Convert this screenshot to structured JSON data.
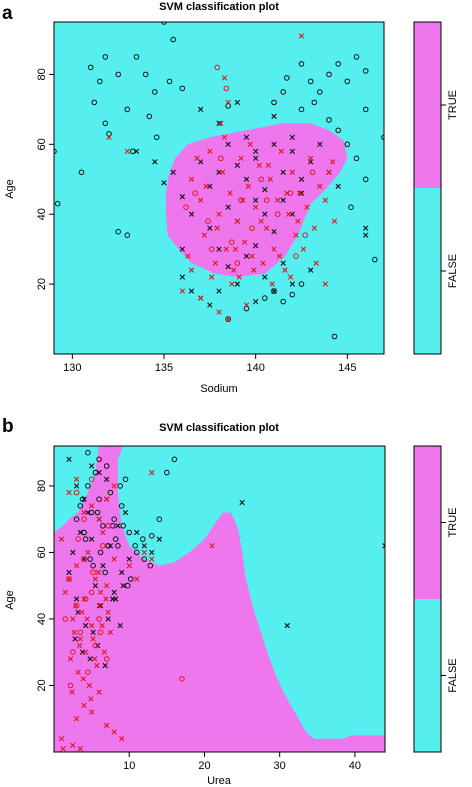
{
  "colors": {
    "false_region": "#55efef",
    "true_region": "#ee77ee",
    "marker_black": "#111111",
    "marker_red": "#e01818",
    "frame": "#000000"
  },
  "panels": [
    {
      "letter": "a",
      "chart_data": {
        "type": "scatter",
        "title": "SVM classification plot",
        "xlabel": "Sodium",
        "ylabel": "Age",
        "xlim": [
          129,
          147
        ],
        "ylim": [
          0,
          95
        ],
        "xticks": [
          130,
          135,
          140,
          145
        ],
        "yticks": [
          20,
          40,
          60,
          80
        ],
        "classes": [
          "FALSE",
          "TRUE"
        ],
        "true_region_polygon": [
          [
            135.6,
            56
          ],
          [
            136.3,
            60
          ],
          [
            137.5,
            62
          ],
          [
            139.5,
            64
          ],
          [
            141.5,
            66
          ],
          [
            143,
            66
          ],
          [
            144,
            64
          ],
          [
            144.8,
            61
          ],
          [
            145,
            56
          ],
          [
            144.6,
            52
          ],
          [
            143.8,
            47
          ],
          [
            143,
            43
          ],
          [
            142.3,
            34
          ],
          [
            141.6,
            28
          ],
          [
            140.5,
            23
          ],
          [
            139,
            22
          ],
          [
            137.8,
            23
          ],
          [
            136.5,
            26
          ],
          [
            135.8,
            30
          ],
          [
            135.2,
            34
          ],
          [
            135.1,
            40
          ],
          [
            135.1,
            46
          ],
          [
            135.3,
            52
          ]
        ],
        "series": [
          {
            "marker": "o",
            "color": "black",
            "x": [
              129,
              129.2,
              130.5,
              131,
              131.2,
              131.5,
              131.8,
              132,
              132.5,
              133,
              133.3,
              133.5,
              134,
              134.2,
              134.5,
              135,
              135.5,
              133,
              134.6,
              135.3,
              136,
              132.5,
              131.8,
              138.5,
              141,
              141.5,
              141.7,
              143,
              143.5,
              144,
              144.5,
              145,
              145.5,
              146,
              146,
              142.5,
              142.5,
              143.2,
              144,
              144.5,
              145,
              145.5,
              146,
              145.2,
              146.5,
              147,
              144.3,
              138.5,
              139.5,
              141.5,
              142,
              142.5,
              140.5,
              141
            ],
            "y": [
              58,
              43,
              52,
              82,
              72,
              78,
              85,
              63,
              35,
              70,
              58,
              85,
              80,
              68,
              75,
              95,
              90,
              34,
              62,
              78,
              76,
              80,
              66,
              71,
              72,
              75,
              79,
              78,
              75,
              80,
              83,
              78,
              85,
              81,
              70,
              83,
              70,
              72,
              67,
              64,
              60,
              56,
              50,
              42,
              27,
              62,
              5,
              10,
              13,
              15,
              17,
              20,
              16,
              18
            ]
          },
          {
            "marker": "x",
            "color": "black",
            "x": [
              133.5,
              134.5,
              135,
              135.5,
              136,
              136,
              136.5,
              136.5,
              137,
              137,
              137.5,
              137.5,
              138,
              138,
              138,
              138.5,
              138.5,
              139,
              139,
              139,
              139.5,
              139.5,
              140,
              140,
              140,
              140,
              140.5,
              140.5,
              141,
              141,
              141,
              141.5,
              141.5,
              142,
              142,
              142,
              142.5,
              143,
              143,
              143.5,
              144,
              144.5,
              146,
              146,
              137,
              138,
              139,
              139.5,
              140,
              141,
              142,
              137.5,
              140.5,
              141.5,
              136,
              138.5,
              142.5
            ],
            "y": [
              58,
              55,
              49,
              52,
              45,
              22,
              40,
              18,
              55,
              16,
              48,
              14,
              52,
              30,
              18,
              60,
              25,
              54,
              38,
              20,
              50,
              28,
              58,
              44,
              31,
              15,
              47,
              22,
              60,
              35,
              18,
              52,
              26,
              58,
              40,
              20,
              50,
              55,
              24,
              60,
              52,
              48,
              36,
              34,
              70,
              66,
              72,
              62,
              56,
              68,
              62,
              36,
              40,
              44,
              30,
              42,
              46
            ]
          },
          {
            "marker": "x",
            "color": "red",
            "x": [
              142.5,
              132,
              133,
              136.3,
              136.5,
              137,
              137.2,
              137.5,
              137.8,
              138,
              138.2,
              138.4,
              138.6,
              138.8,
              139,
              139.2,
              139.4,
              139.6,
              139.8,
              140,
              140.2,
              140.4,
              140.6,
              140.8,
              141,
              141.2,
              141.4,
              141.6,
              141.8,
              142,
              142.2,
              142.4,
              142.6,
              142.8,
              143,
              143.2,
              143.5,
              143.8,
              144,
              144.3,
              136.8,
              137.3,
              137.9,
              138.3,
              138.9,
              139.3,
              139.7,
              140.3,
              140.7,
              141.3,
              141.7,
              142.3,
              136.5,
              137.6,
              138.7,
              139.1,
              139.9,
              140.9,
              141.9,
              143.3,
              136,
              137,
              138,
              138.5,
              139.5,
              143.8,
              138.1,
              138.5,
              138.3,
              144.2
            ],
            "y": [
              91,
              62,
              58,
              28,
              50,
              44,
              34,
              58,
              26,
              40,
              52,
              30,
              46,
              24,
              38,
              56,
              32,
              48,
              28,
              42,
              54,
              26,
              36,
              50,
              30,
              44,
              58,
              24,
              40,
              52,
              34,
              46,
              30,
              42,
              56,
              36,
              48,
              44,
              52,
              38,
              56,
              48,
              36,
              62,
              30,
              44,
              60,
              38,
              54,
              28,
              46,
              38,
              24,
              22,
              20,
              22,
              24,
              20,
              22,
              26,
              18,
              16,
              12,
              10,
              14,
              20,
              66,
              72,
              79,
              55
            ]
          },
          {
            "marker": "o",
            "color": "red",
            "x": [
              136.7,
              137.4,
              138.1,
              138.7,
              139.2,
              139.8,
              140.3,
              141.2,
              141.9,
              142.7,
              143.1,
              136.2,
              137.6,
              139,
              140.6,
              142.2,
              138.4,
              137.9
            ],
            "y": [
              46,
              38,
              56,
              32,
              44,
              36,
              50,
              40,
              46,
              34,
              52,
              42,
              30,
              26,
              44,
              28,
              76,
              82
            ]
          }
        ]
      }
    },
    {
      "letter": "b",
      "chart_data": {
        "type": "scatter",
        "title": "SVM classification plot",
        "xlabel": "Urea",
        "ylabel": "Age",
        "xlim": [
          0,
          44
        ],
        "ylim": [
          0,
          92
        ],
        "xticks": [
          10,
          20,
          30,
          40
        ],
        "yticks": [
          20,
          40,
          60,
          80
        ],
        "classes": [
          "FALSE",
          "TRUE"
        ],
        "true_region_polygon": [
          [
            0,
            0
          ],
          [
            44,
            0
          ],
          [
            44,
            5
          ],
          [
            39.5,
            5
          ],
          [
            38.5,
            4
          ],
          [
            34.5,
            4
          ],
          [
            33.5,
            6
          ],
          [
            32.5,
            10
          ],
          [
            31.5,
            14
          ],
          [
            30.5,
            18
          ],
          [
            29.5,
            23
          ],
          [
            28.5,
            29
          ],
          [
            27.5,
            36
          ],
          [
            26.5,
            43
          ],
          [
            25.5,
            52
          ],
          [
            25,
            60
          ],
          [
            24.5,
            67
          ],
          [
            23.5,
            72
          ],
          [
            22.5,
            72
          ],
          [
            21.5,
            69
          ],
          [
            20,
            64
          ],
          [
            18,
            60
          ],
          [
            16,
            57
          ],
          [
            14,
            56
          ],
          [
            12,
            58
          ],
          [
            10,
            62
          ],
          [
            9,
            68
          ],
          [
            8.5,
            78
          ],
          [
            8.5,
            88
          ],
          [
            9.2,
            92
          ],
          [
            6,
            92
          ],
          [
            5.5,
            84
          ],
          [
            4.5,
            78
          ],
          [
            3.2,
            72
          ],
          [
            2,
            70
          ],
          [
            1.2,
            68
          ],
          [
            0,
            66
          ]
        ],
        "series": [
          {
            "marker": "o",
            "color": "black",
            "x": [
              3,
              3.5,
              4,
              4.5,
              5,
              5.5,
              6,
              6.5,
              7,
              7.5,
              8,
              8.5,
              9,
              9.5,
              10,
              11,
              12,
              13,
              14,
              15,
              16,
              4.2,
              5.2,
              6.2,
              7.2,
              8.2,
              9.2,
              10.2,
              3.8,
              4.8,
              5.8,
              6.8,
              7.8,
              8.8,
              9.8,
              10.8,
              11.8,
              12.8,
              4.5,
              6
            ],
            "y": [
              70,
              74,
              66,
              80,
              72,
              84,
              76,
              68,
              86,
              78,
              70,
              62,
              74,
              82,
              66,
              60,
              58,
              65,
              70,
              84,
              88,
              64,
              56,
              60,
              62,
              64,
              68,
              52,
              76,
              58,
              72,
              54,
              68,
              80,
              50,
              62,
              64,
              56,
              90,
              88
            ]
          },
          {
            "marker": "x",
            "color": "black",
            "x": [
              2,
              2.5,
              3,
              3.5,
              4,
              4.5,
              5,
              5.5,
              6,
              6.5,
              7,
              7.5,
              8,
              8.5,
              9,
              9.5,
              10,
              11,
              12,
              13,
              14,
              3.2,
              4.2,
              5.2,
              6.2,
              7.2,
              8.2,
              9.2,
              2.8,
              3.8,
              4.8,
              5.8,
              6.8,
              7.8,
              8.8,
              3,
              5,
              7,
              25,
              31,
              44,
              2,
              4,
              6
            ],
            "y": [
              54,
              60,
              46,
              66,
              58,
              72,
              64,
              50,
              70,
              56,
              76,
              62,
              48,
              68,
              54,
              72,
              58,
              66,
              62,
              60,
              64,
              42,
              38,
              36,
              44,
              40,
              46,
              50,
              34,
              30,
              28,
              32,
              26,
              46,
              38,
              80,
              86,
              82,
              75,
              38,
              62,
              88,
              76,
              84
            ]
          },
          {
            "marker": "x",
            "color": "red",
            "x": [
              1,
              1.5,
              2,
              2.5,
              3,
              3.5,
              4,
              4.5,
              5,
              5.5,
              6,
              6.5,
              7,
              7.5,
              8,
              2.2,
              2.7,
              3.2,
              3.7,
              4.2,
              4.7,
              5.2,
              5.7,
              6.2,
              6.7,
              7.2,
              2.4,
              2.9,
              3.4,
              3.9,
              4.4,
              4.9,
              5.4,
              5.9,
              6.4,
              6.9,
              3,
              4,
              5,
              6,
              7,
              8,
              9,
              10,
              11,
              12,
              13,
              2,
              3,
              4,
              5,
              6,
              7,
              8,
              21,
              13,
              1,
              1.2,
              2.5,
              3.5
            ],
            "y": [
              64,
              48,
              52,
              40,
              56,
              34,
              46,
              60,
              38,
              52,
              44,
              66,
              50,
              36,
              58,
              28,
              36,
              24,
              42,
              30,
              20,
              34,
              26,
              48,
              30,
              42,
              18,
              44,
              32,
              22,
              40,
              16,
              28,
              54,
              38,
              46,
              10,
              14,
              12,
              18,
              8,
              6,
              4,
              56,
              52,
              60,
              58,
              78,
              82,
              72,
              74,
              70,
              76,
              80,
              62,
              84,
              4,
              1,
              2,
              1
            ]
          },
          {
            "marker": "o",
            "color": "red",
            "x": [
              1.5,
              2,
              2.5,
              3,
              3.5,
              4,
              4.5,
              5,
              5.5,
              6,
              6.5,
              7,
              2.2,
              3.2,
              4.2,
              5.2,
              6.2,
              7.2,
              17,
              3,
              4,
              5
            ],
            "y": [
              40,
              52,
              30,
              44,
              36,
              58,
              24,
              48,
              32,
              40,
              62,
              28,
              20,
              64,
              46,
              54,
              36,
              68,
              22,
              78,
              70,
              82
            ]
          }
        ]
      }
    }
  ]
}
